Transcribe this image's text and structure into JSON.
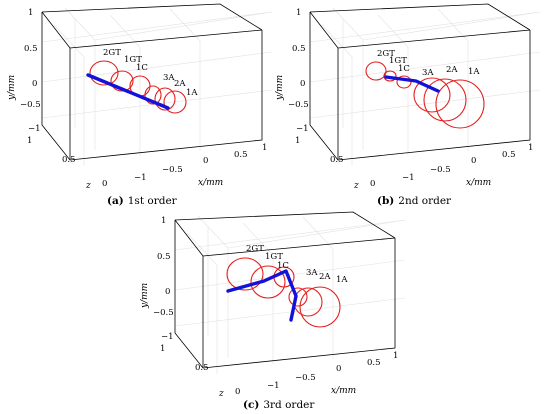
{
  "panels": [
    {
      "id": "a",
      "caption_letter": "(a)",
      "caption_text": "1st order",
      "axis_labels": {
        "x": "x/mm",
        "y": "y/mm",
        "z": "z"
      },
      "y_ticks": [
        "1",
        "0.5",
        "0",
        "−0.5",
        "−1"
      ],
      "x_ticks": [
        "−1",
        "−0.5",
        "0",
        "0.5",
        "1"
      ],
      "z_ticks": [
        "1",
        "0.5",
        "0"
      ],
      "nodes": [
        "2GT",
        "1GT",
        "1C",
        "3A",
        "2A",
        "1A"
      ]
    },
    {
      "id": "b",
      "caption_letter": "(b)",
      "caption_text": "2nd order",
      "axis_labels": {
        "x": "x/mm",
        "y": "y/mm",
        "z": "z"
      },
      "y_ticks": [
        "1",
        "0.5",
        "0",
        "−0.5",
        "−1"
      ],
      "x_ticks": [
        "−1",
        "−0.5",
        "0",
        "0.5",
        "1"
      ],
      "z_ticks": [
        "1",
        "0.5",
        "0"
      ],
      "nodes": [
        "2GT",
        "1GT",
        "1C",
        "3A",
        "2A",
        "1A"
      ]
    },
    {
      "id": "c",
      "caption_letter": "(c)",
      "caption_text": "3rd order",
      "axis_labels": {
        "x": "x/mm",
        "y": "y/mm",
        "z": "z"
      },
      "y_ticks": [
        "1",
        "0.5",
        "0",
        "−0.5",
        "−1"
      ],
      "x_ticks": [
        "−1",
        "−0.5",
        "0",
        "0.5",
        "1"
      ],
      "z_ticks": [
        "1",
        "0.5",
        "0"
      ],
      "nodes": [
        "2GT",
        "1GT",
        "1C",
        "3A",
        "2A",
        "1A"
      ]
    }
  ],
  "colors": {
    "orbit": "#e41e1e",
    "shaft": "#1212d8"
  }
}
